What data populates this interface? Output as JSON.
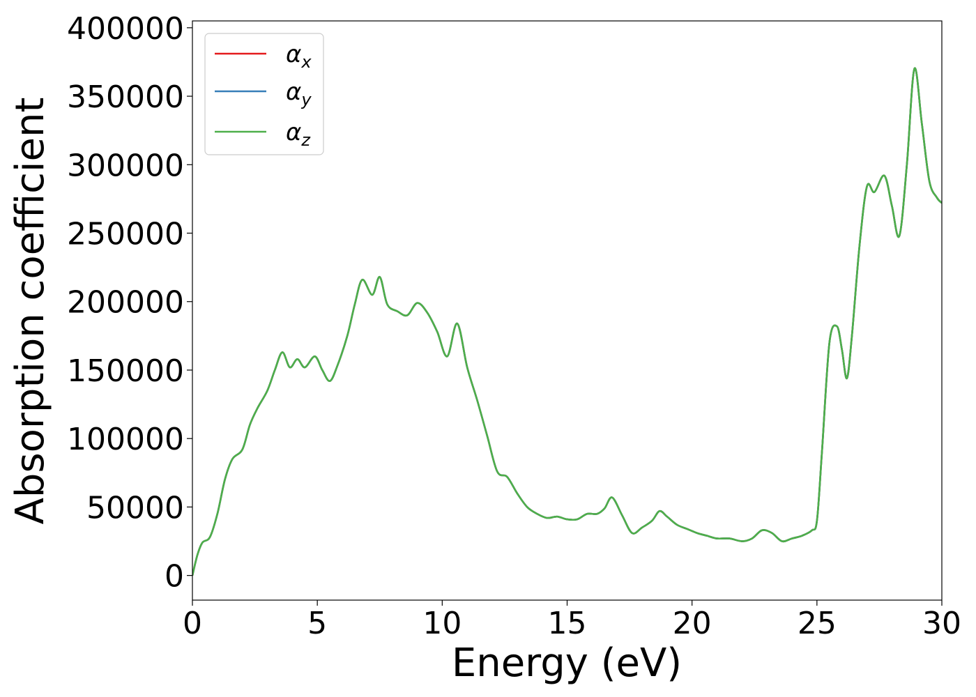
{
  "chart_data": {
    "type": "line",
    "title": "",
    "xlabel": "Energy (eV)",
    "ylabel": "Absorption coefficient",
    "xlim": [
      0,
      30
    ],
    "ylim": [
      -18000,
      405000
    ],
    "x_ticks": [
      0,
      5,
      10,
      15,
      20,
      25,
      30
    ],
    "y_ticks": [
      0,
      50000,
      100000,
      150000,
      200000,
      250000,
      300000,
      350000,
      400000
    ],
    "x_tick_labels": [
      "0",
      "5",
      "10",
      "15",
      "20",
      "25",
      "30"
    ],
    "y_tick_labels": [
      "0",
      "50000",
      "100000",
      "150000",
      "200000",
      "250000",
      "300000",
      "350000",
      "400000"
    ],
    "grid": false,
    "legend_position": "top-left",
    "x": [
      0,
      0.2,
      0.4,
      0.7,
      1.0,
      1.3,
      1.6,
      2.0,
      2.3,
      2.6,
      3.0,
      3.3,
      3.6,
      3.9,
      4.2,
      4.5,
      4.9,
      5.2,
      5.5,
      5.8,
      6.2,
      6.5,
      6.8,
      7.2,
      7.5,
      7.8,
      8.2,
      8.6,
      9.0,
      9.4,
      9.8,
      10.2,
      10.6,
      11.0,
      11.4,
      11.8,
      12.2,
      12.6,
      13.0,
      13.4,
      13.8,
      14.2,
      14.6,
      15.0,
      15.4,
      15.8,
      16.2,
      16.5,
      16.8,
      17.2,
      17.6,
      18.0,
      18.4,
      18.7,
      19.0,
      19.4,
      19.8,
      20.2,
      20.6,
      21.0,
      21.5,
      22.0,
      22.4,
      22.8,
      23.2,
      23.6,
      24.0,
      24.4,
      24.8,
      25.0,
      25.2,
      25.5,
      25.8,
      26.0,
      26.2,
      26.4,
      26.7,
      27.0,
      27.3,
      27.7,
      28.0,
      28.3,
      28.6,
      28.9,
      29.2,
      29.5,
      29.8,
      30.0
    ],
    "series": [
      {
        "name": "α_x",
        "label_main": "α",
        "label_sub": "x",
        "color": "#e41a1c",
        "values": [
          0,
          15000,
          24000,
          28000,
          45000,
          70000,
          85000,
          92000,
          110000,
          122000,
          135000,
          150000,
          163000,
          152000,
          158000,
          152000,
          160000,
          150000,
          142000,
          153000,
          175000,
          198000,
          216000,
          205000,
          218000,
          198000,
          193000,
          190000,
          199000,
          192000,
          178000,
          160000,
          184000,
          152000,
          128000,
          102000,
          76000,
          72000,
          60000,
          50000,
          45000,
          42000,
          43000,
          41000,
          41000,
          45000,
          45000,
          49000,
          57000,
          44000,
          31000,
          35000,
          40000,
          47000,
          43000,
          37000,
          34000,
          31000,
          29000,
          27000,
          27000,
          25000,
          27000,
          33000,
          31000,
          25000,
          27000,
          29000,
          33000,
          40000,
          90000,
          170000,
          182000,
          165000,
          144000,
          175000,
          240000,
          284000,
          280000,
          292000,
          270000,
          248000,
          300000,
          370000,
          330000,
          288000,
          276000,
          272000
        ]
      },
      {
        "name": "α_y",
        "label_main": "α",
        "label_sub": "y",
        "color": "#377eb8",
        "values": [
          0,
          15000,
          24000,
          28000,
          45000,
          70000,
          85000,
          92000,
          110000,
          122000,
          135000,
          150000,
          163000,
          152000,
          158000,
          152000,
          160000,
          150000,
          142000,
          153000,
          175000,
          198000,
          216000,
          205000,
          218000,
          198000,
          193000,
          190000,
          199000,
          192000,
          178000,
          160000,
          184000,
          152000,
          128000,
          102000,
          76000,
          72000,
          60000,
          50000,
          45000,
          42000,
          43000,
          41000,
          41000,
          45000,
          45000,
          49000,
          57000,
          44000,
          31000,
          35000,
          40000,
          47000,
          43000,
          37000,
          34000,
          31000,
          29000,
          27000,
          27000,
          25000,
          27000,
          33000,
          31000,
          25000,
          27000,
          29000,
          33000,
          40000,
          90000,
          170000,
          182000,
          165000,
          144000,
          175000,
          240000,
          284000,
          280000,
          292000,
          270000,
          248000,
          300000,
          370000,
          330000,
          288000,
          276000,
          272000
        ]
      },
      {
        "name": "α_z",
        "label_main": "α",
        "label_sub": "z",
        "color": "#4daf4a",
        "values": [
          0,
          15000,
          24000,
          28000,
          45000,
          70000,
          85000,
          92000,
          110000,
          122000,
          135000,
          150000,
          163000,
          152000,
          158000,
          152000,
          160000,
          150000,
          142000,
          153000,
          175000,
          198000,
          216000,
          205000,
          218000,
          198000,
          193000,
          190000,
          199000,
          192000,
          178000,
          160000,
          184000,
          152000,
          128000,
          102000,
          76000,
          72000,
          60000,
          50000,
          45000,
          42000,
          43000,
          41000,
          41000,
          45000,
          45000,
          49000,
          57000,
          44000,
          31000,
          35000,
          40000,
          47000,
          43000,
          37000,
          34000,
          31000,
          29000,
          27000,
          27000,
          25000,
          27000,
          33000,
          31000,
          25000,
          27000,
          29000,
          33000,
          40000,
          90000,
          170000,
          182000,
          165000,
          144000,
          175000,
          240000,
          284000,
          280000,
          292000,
          270000,
          248000,
          300000,
          370000,
          330000,
          288000,
          276000,
          272000
        ]
      }
    ]
  }
}
